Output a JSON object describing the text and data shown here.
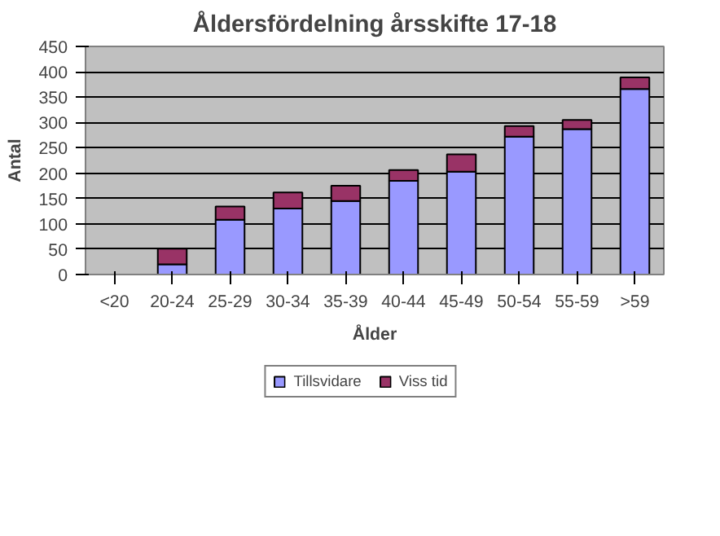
{
  "chart_data": {
    "type": "bar",
    "title": "Åldersfördelning årsskifte 17-18",
    "xlabel": "Ålder",
    "ylabel": "Antal",
    "categories": [
      "<20",
      "20-24",
      "25-29",
      "30-34",
      "35-39",
      "40-44",
      "45-49",
      "50-54",
      "55-59",
      ">59"
    ],
    "stacked": true,
    "series": [
      {
        "name": "Tillsvidare",
        "color": "#9999ff",
        "values": [
          0,
          20,
          108,
          130,
          145,
          185,
          203,
          272,
          287,
          366
        ]
      },
      {
        "name": "Viss tid",
        "color": "#993366",
        "values": [
          0,
          31,
          26,
          32,
          30,
          21,
          34,
          21,
          18,
          23
        ]
      }
    ],
    "ylim": [
      0,
      450
    ],
    "yticks": [
      0,
      50,
      100,
      150,
      200,
      250,
      300,
      350,
      400,
      450
    ],
    "grid": "y",
    "legend": "bottom"
  }
}
